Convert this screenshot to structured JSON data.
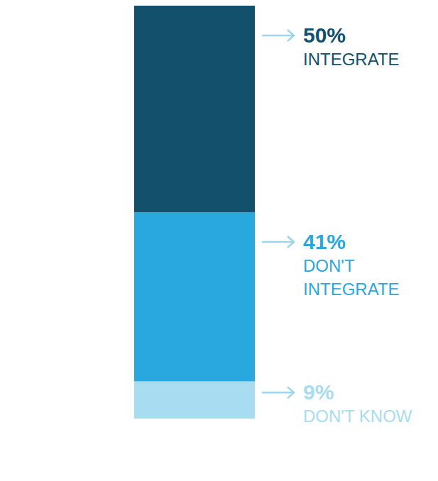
{
  "chart_data": {
    "type": "bar",
    "stacked": true,
    "categories": [
      null
    ],
    "ylim": [
      0,
      100
    ],
    "tick_labels": false,
    "data_labels": true,
    "series": [
      {
        "name": "INTEGRATE",
        "color": "#13506b",
        "values": [
          50
        ],
        "value_labels": [
          "50%"
        ]
      },
      {
        "name": "DON'T INTEGRATE",
        "color": "#29a8e0",
        "values": [
          41
        ],
        "value_labels": [
          "41%"
        ]
      },
      {
        "name": "DON'T KNOW",
        "color": "#a8dcf0",
        "values": [
          9
        ],
        "value_labels": [
          "9%"
        ]
      }
    ]
  }
}
